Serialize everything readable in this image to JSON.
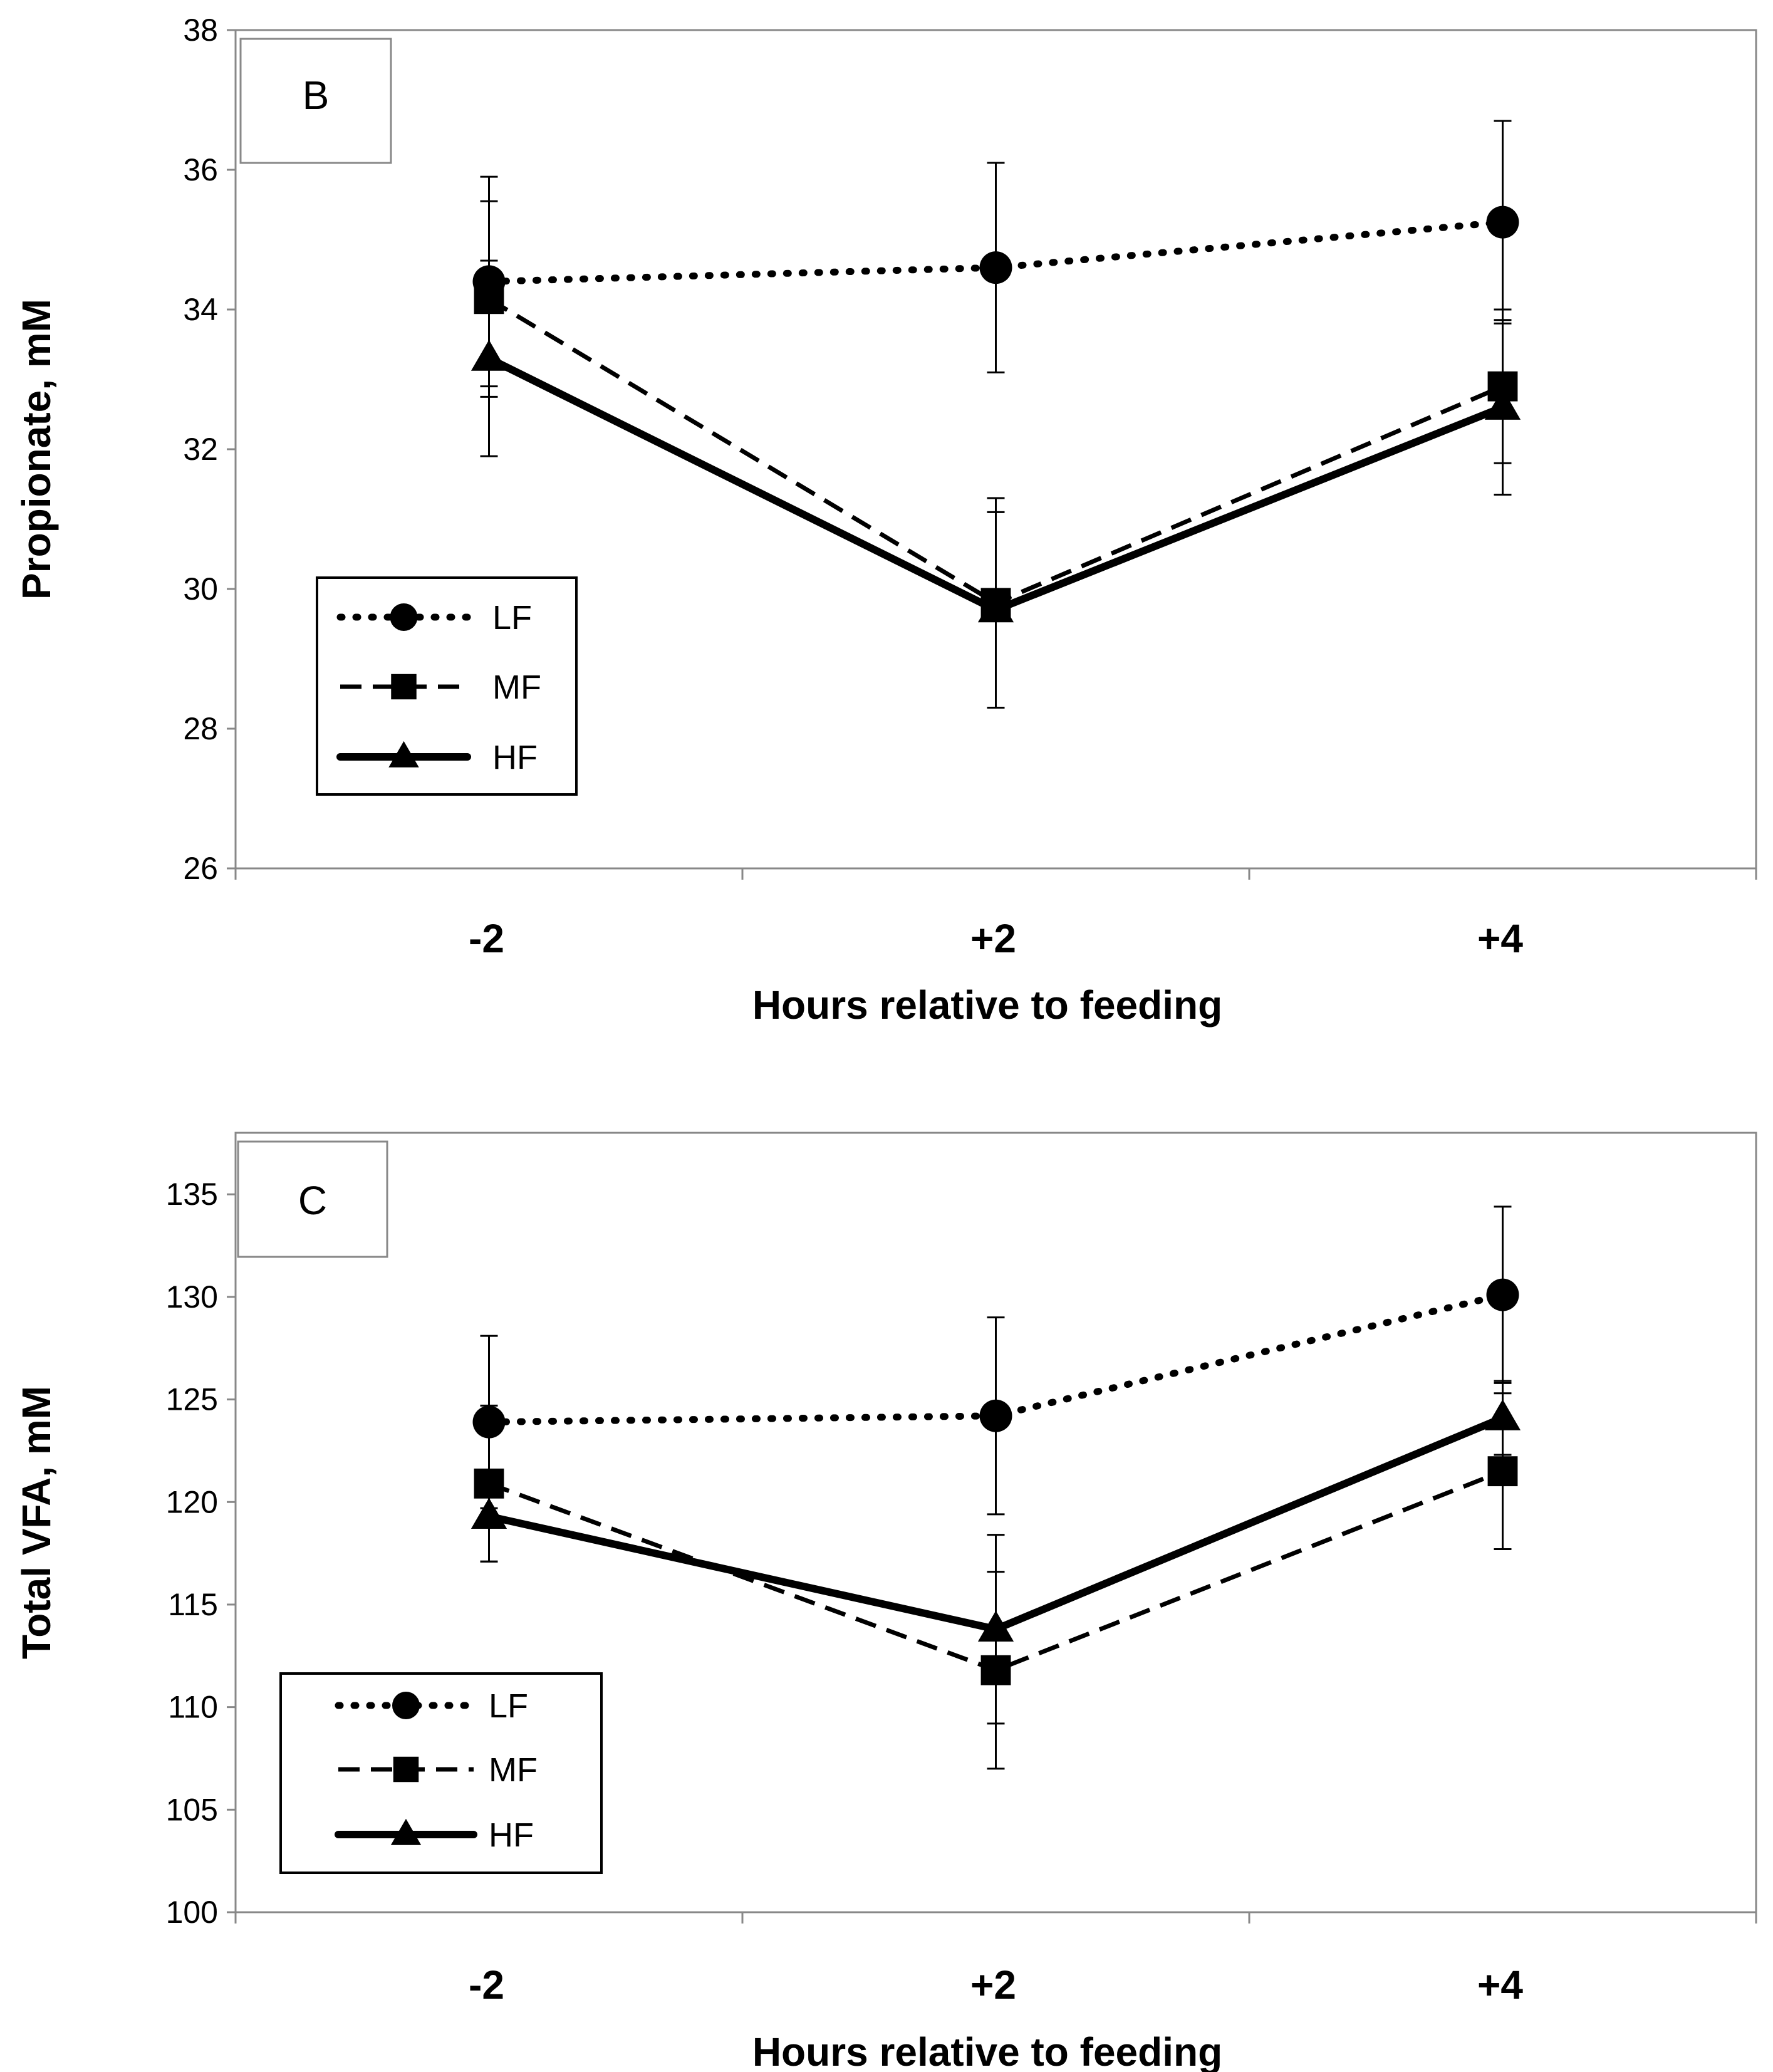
{
  "chart_data": [
    {
      "type": "line",
      "panel_label": "B",
      "categories": [
        "-2",
        "+2",
        "+4"
      ],
      "xlabel": "Hours relative to feeding",
      "ylabel": "Propionate, mM",
      "ylim": [
        26,
        38
      ],
      "yticks": [
        26,
        28,
        30,
        32,
        34,
        36,
        38
      ],
      "legend_position": "lower-left",
      "series": [
        {
          "name": "LF",
          "marker": "circle",
          "line": "dotted",
          "values": [
            34.4,
            34.6,
            35.25
          ],
          "error": [
            1.5,
            1.5,
            1.45
          ]
        },
        {
          "name": "MF",
          "marker": "square",
          "line": "dashed",
          "values": [
            34.15,
            29.8,
            32.9
          ],
          "error": [
            1.4,
            1.5,
            1.1
          ]
        },
        {
          "name": "HF",
          "marker": "triangle",
          "line": "solid",
          "values": [
            33.3,
            29.7,
            32.6
          ],
          "error": [
            1.4,
            1.4,
            1.25
          ]
        }
      ]
    },
    {
      "type": "line",
      "panel_label": "C",
      "categories": [
        "-2",
        "+2",
        "+4"
      ],
      "xlabel": "Hours relative to feeding",
      "ylabel": "Total VFA, mM",
      "ylim": [
        100,
        138
      ],
      "yticks": [
        100,
        105,
        110,
        115,
        120,
        125,
        130,
        135
      ],
      "legend_position": "lower-left",
      "series": [
        {
          "name": "LF",
          "marker": "circle",
          "line": "dotted",
          "values": [
            123.9,
            124.2,
            130.1
          ],
          "error": [
            4.2,
            4.8,
            4.3
          ]
        },
        {
          "name": "MF",
          "marker": "square",
          "line": "dashed",
          "values": [
            120.9,
            111.8,
            121.5
          ],
          "error": [
            3.8,
            4.8,
            3.8
          ]
        },
        {
          "name": "HF",
          "marker": "triangle",
          "line": "solid",
          "values": [
            119.3,
            113.8,
            124.1
          ],
          "error": [
            2.2,
            4.6,
            1.8
          ]
        }
      ]
    }
  ]
}
